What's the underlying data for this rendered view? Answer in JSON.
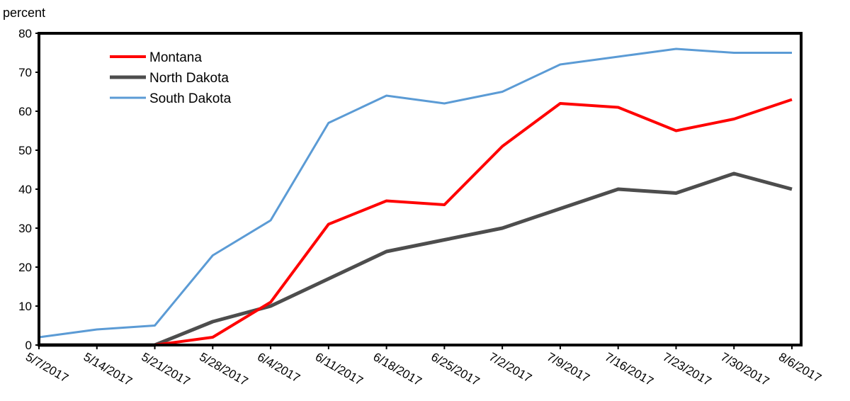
{
  "chart_data": {
    "type": "line",
    "ylabel": "percent",
    "xlabel": "",
    "title": "",
    "ylim": [
      0,
      80
    ],
    "yticks": [
      0,
      10,
      20,
      30,
      40,
      50,
      60,
      70,
      80
    ],
    "grid": false,
    "legend_position": "top-left",
    "categories": [
      "5/7/2017",
      "5/14/2017",
      "5/21/2017",
      "5/28/2017",
      "6/4/2017",
      "6/11/2017",
      "6/18/2017",
      "6/25/2017",
      "7/2/2017",
      "7/9/2017",
      "7/16/2017",
      "7/23/2017",
      "7/30/2017",
      "8/6/2017"
    ],
    "series": [
      {
        "name": "Montana",
        "color": "#ff0000",
        "values": [
          0,
          0,
          0,
          2,
          11,
          31,
          37,
          36,
          51,
          62,
          61,
          55,
          58,
          63
        ]
      },
      {
        "name": "North Dakota",
        "color": "#4d4d4d",
        "values": [
          0,
          0,
          0,
          6,
          10,
          17,
          24,
          27,
          30,
          35,
          40,
          39,
          44,
          40
        ]
      },
      {
        "name": "South Dakota",
        "color": "#5b9bd5",
        "values": [
          2,
          4,
          5,
          23,
          32,
          57,
          64,
          62,
          65,
          72,
          74,
          76,
          75,
          75
        ]
      }
    ]
  }
}
